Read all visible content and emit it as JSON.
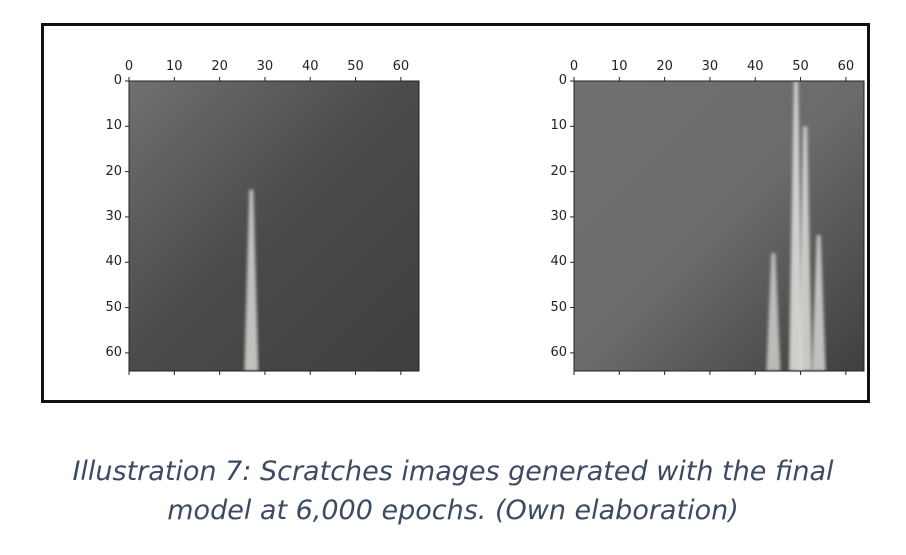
{
  "caption": {
    "line1": "Illustration 7: Scratches images generated with the final",
    "line2": "model at 6,000 epochs. (Own elaboration)"
  },
  "colors": {
    "frame": "#111111",
    "caption": "#3d4a63",
    "left_background": "#4a4a4a",
    "right_background": "#6b6b6b",
    "scratch": "#d8d6d2"
  },
  "chart_data": [
    {
      "type": "heatmap",
      "image_size": [
        64,
        64
      ],
      "xlim": [
        0,
        64
      ],
      "ylim": [
        0,
        64
      ],
      "x_ticks": [
        "0",
        "10",
        "20",
        "30",
        "40",
        "50",
        "60"
      ],
      "y_ticks": [
        "0",
        "10",
        "20",
        "30",
        "40",
        "50",
        "60"
      ],
      "description_free": true,
      "scratches": [
        {
          "x": 27,
          "y_start": 24,
          "y_end": 64,
          "brightness": 0.85
        }
      ]
    },
    {
      "type": "heatmap",
      "image_size": [
        64,
        64
      ],
      "xlim": [
        0,
        64
      ],
      "ylim": [
        0,
        64
      ],
      "x_ticks": [
        "0",
        "10",
        "20",
        "30",
        "40",
        "50",
        "60"
      ],
      "y_ticks": [
        "0",
        "10",
        "20",
        "30",
        "40",
        "50",
        "60"
      ],
      "description_free": true,
      "scratches": [
        {
          "x": 49,
          "y_start": 0,
          "y_end": 64,
          "brightness": 0.95
        },
        {
          "x": 51,
          "y_start": 10,
          "y_end": 64,
          "brightness": 0.9
        },
        {
          "x": 54,
          "y_start": 34,
          "y_end": 64,
          "brightness": 0.85
        },
        {
          "x": 44,
          "y_start": 38,
          "y_end": 64,
          "brightness": 0.8
        }
      ]
    }
  ]
}
